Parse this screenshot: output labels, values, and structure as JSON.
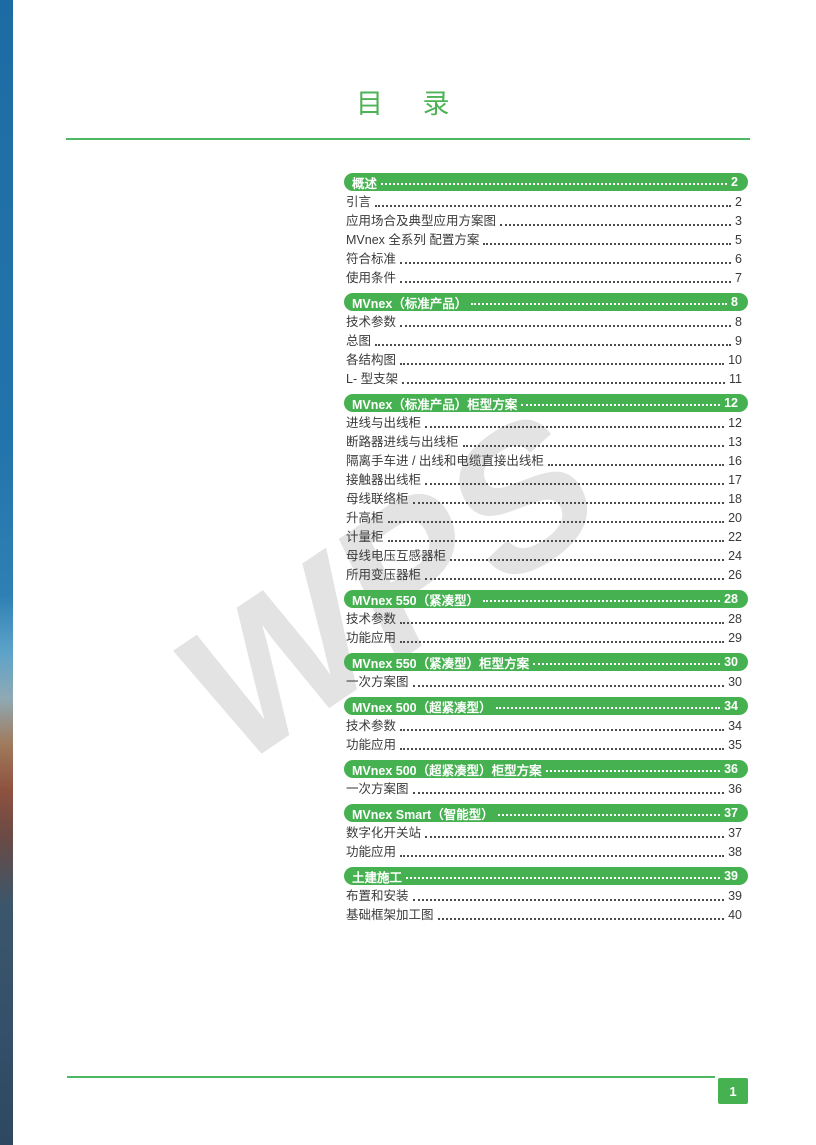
{
  "page": {
    "title": "目  录"
  },
  "accent_color": "#46b150",
  "watermark": {
    "text": "WPS"
  },
  "footer": {
    "page_number": "1"
  },
  "toc": {
    "sections": [
      {
        "label": "概述",
        "page": "2",
        "items": [
          {
            "label": "引言",
            "page": "2"
          },
          {
            "label": "应用场合及典型应用方案图",
            "page": "3"
          },
          {
            "label": "MVnex 全系列 配置方案",
            "page": "5"
          },
          {
            "label": "符合标准",
            "page": "6"
          },
          {
            "label": "使用条件",
            "page": "7"
          }
        ]
      },
      {
        "label": "MVnex（标准产品）",
        "page": "8",
        "items": [
          {
            "label": "技术参数",
            "page": "8"
          },
          {
            "label": "总图",
            "page": "9"
          },
          {
            "label": "各结构图",
            "page": "10"
          },
          {
            "label": "L- 型支架",
            "page": "11"
          }
        ]
      },
      {
        "label": "MVnex（标准产品）柜型方案",
        "page": "12",
        "items": [
          {
            "label": "进线与出线柜",
            "page": "12"
          },
          {
            "label": "断路器进线与出线柜",
            "page": "13"
          },
          {
            "label": "隔离手车进 / 出线和电缆直接出线柜",
            "page": "16"
          },
          {
            "label": "接触器出线柜",
            "page": "17"
          },
          {
            "label": "母线联络柜",
            "page": "18"
          },
          {
            "label": "升高柜",
            "page": "20"
          },
          {
            "label": "计量柜",
            "page": "22"
          },
          {
            "label": "母线电压互感器柜",
            "page": "24"
          },
          {
            "label": "所用变压器柜",
            "page": "26"
          }
        ]
      },
      {
        "label": "MVnex 550（紧凑型）",
        "page": "28",
        "items": [
          {
            "label": "技术参数",
            "page": "28"
          },
          {
            "label": "功能应用",
            "page": "29"
          }
        ]
      },
      {
        "label": "MVnex 550（紧凑型）柜型方案",
        "page": "30",
        "items": [
          {
            "label": "一次方案图",
            "page": "30"
          }
        ]
      },
      {
        "label": "MVnex 500（超紧凑型）",
        "page": "34",
        "items": [
          {
            "label": "技术参数",
            "page": "34"
          },
          {
            "label": "功能应用",
            "page": "35"
          }
        ]
      },
      {
        "label": "MVnex 500（超紧凑型）柜型方案",
        "page": "36",
        "items": [
          {
            "label": "一次方案图",
            "page": "36"
          }
        ]
      },
      {
        "label": "MVnex Smart（智能型）",
        "page": "37",
        "items": [
          {
            "label": "数字化开关站",
            "page": "37"
          },
          {
            "label": "功能应用",
            "page": "38"
          }
        ]
      },
      {
        "label": "土建施工",
        "page": "39",
        "items": [
          {
            "label": "布置和安装",
            "page": "39"
          },
          {
            "label": "基础框架加工图",
            "page": "40"
          }
        ]
      }
    ]
  }
}
